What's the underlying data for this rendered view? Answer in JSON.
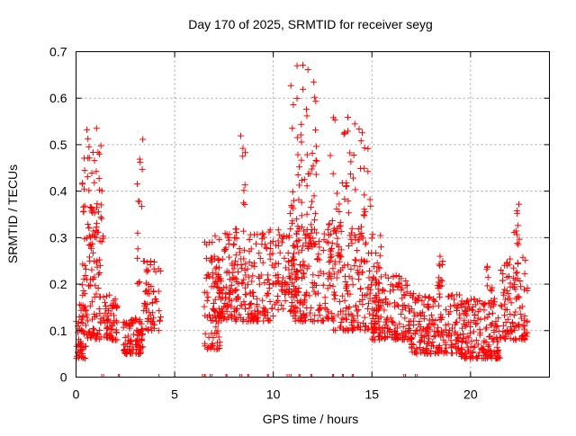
{
  "chart_data": {
    "type": "scatter",
    "title": "Day 170 of 2025, SRMTID for receiver seyg",
    "xlabel": "GPS time / hours",
    "ylabel": "SRMTID / TECUs",
    "xlim": [
      0,
      24
    ],
    "ylim": [
      0,
      0.7
    ],
    "xticks": [
      0,
      5,
      10,
      15,
      20
    ],
    "xtick_labels": [
      "0",
      "5",
      "10",
      "15",
      "20"
    ],
    "yticks": [
      0,
      0.1,
      0.2,
      0.3,
      0.4,
      0.5,
      0.6,
      0.7
    ],
    "ytick_labels": [
      "0",
      "0.1",
      "0.2",
      "0.3",
      "0.4",
      "0.5",
      "0.6",
      "0.7"
    ],
    "grid": true,
    "marker": "+",
    "color": "#ff0000",
    "series": [
      {
        "name": "SRMTID",
        "clusters": [
          {
            "x": [
              0.0,
              0.5
            ],
            "y": [
              0.04,
              0.16
            ],
            "n": 50
          },
          {
            "x": [
              0.3,
              1.4
            ],
            "y": [
              0.08,
              0.42
            ],
            "n": 110
          },
          {
            "x": [
              0.4,
              1.3
            ],
            "y": [
              0.3,
              0.55
            ],
            "n": 35
          },
          {
            "x": [
              1.4,
              2.1
            ],
            "y": [
              0.08,
              0.18
            ],
            "n": 60
          },
          {
            "x": [
              2.4,
              3.4
            ],
            "y": [
              0.05,
              0.13
            ],
            "n": 90
          },
          {
            "x": [
              3.1,
              3.4
            ],
            "y": [
              0.2,
              0.52
            ],
            "n": 14
          },
          {
            "x": [
              3.4,
              4.3
            ],
            "y": [
              0.1,
              0.25
            ],
            "n": 60
          },
          {
            "x": [
              6.5,
              7.3
            ],
            "y": [
              0.06,
              0.3
            ],
            "n": 70
          },
          {
            "x": [
              7.0,
              10.0
            ],
            "y": [
              0.12,
              0.32
            ],
            "n": 260
          },
          {
            "x": [
              8.3,
              8.6
            ],
            "y": [
              0.37,
              0.53
            ],
            "n": 8
          },
          {
            "x": [
              10.0,
              11.2
            ],
            "y": [
              0.14,
              0.32
            ],
            "n": 90
          },
          {
            "x": [
              10.8,
              12.2
            ],
            "y": [
              0.28,
              0.68
            ],
            "n": 70
          },
          {
            "x": [
              11.0,
              13.0
            ],
            "y": [
              0.12,
              0.33
            ],
            "n": 150
          },
          {
            "x": [
              12.8,
              14.6
            ],
            "y": [
              0.25,
              0.56
            ],
            "n": 55
          },
          {
            "x": [
              13.0,
              15.5
            ],
            "y": [
              0.1,
              0.32
            ],
            "n": 190
          },
          {
            "x": [
              14.6,
              15.0
            ],
            "y": [
              0.34,
              0.5
            ],
            "n": 10
          },
          {
            "x": [
              15.0,
              17.0
            ],
            "y": [
              0.08,
              0.22
            ],
            "n": 150
          },
          {
            "x": [
              17.0,
              19.5
            ],
            "y": [
              0.05,
              0.18
            ],
            "n": 200
          },
          {
            "x": [
              18.3,
              18.6
            ],
            "y": [
              0.19,
              0.27
            ],
            "n": 14
          },
          {
            "x": [
              19.5,
              21.5
            ],
            "y": [
              0.04,
              0.17
            ],
            "n": 180
          },
          {
            "x": [
              20.8,
              21.2
            ],
            "y": [
              0.18,
              0.24
            ],
            "n": 8
          },
          {
            "x": [
              21.5,
              22.9
            ],
            "y": [
              0.08,
              0.26
            ],
            "n": 110
          },
          {
            "x": [
              22.2,
              22.5
            ],
            "y": [
              0.28,
              0.4
            ],
            "n": 10
          }
        ],
        "zero_markers_x": [
          1.3,
          1.4,
          2.15,
          2.2,
          4.2,
          6.4,
          6.5,
          6.55,
          6.8,
          6.9,
          7.6,
          7.65,
          8.3,
          8.4,
          8.7,
          8.75,
          9.7,
          9.75,
          10.7,
          10.8,
          10.9,
          11.3,
          11.35,
          11.9,
          11.95,
          13.0,
          13.05,
          13.5,
          13.55,
          14.0,
          14.05,
          16.6,
          16.7,
          17.2,
          17.3
        ]
      }
    ]
  }
}
